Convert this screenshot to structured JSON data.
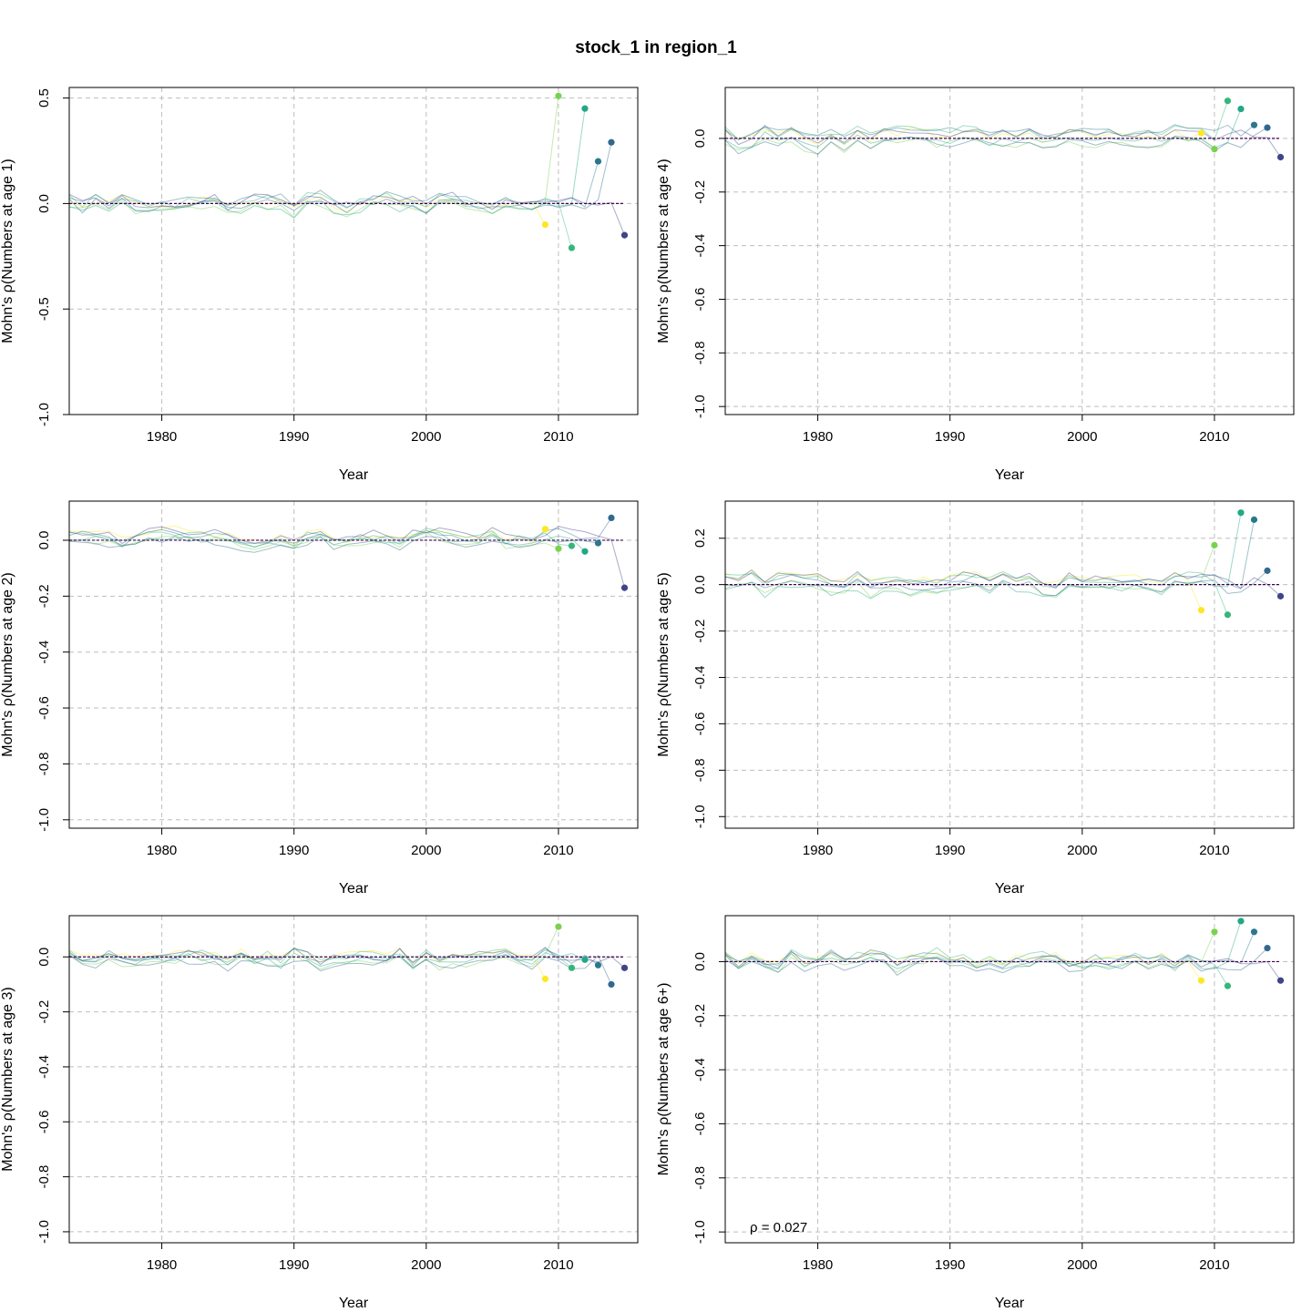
{
  "title": "stock_1 in region_1",
  "colors": {
    "peels": [
      "#FDE725",
      "#7AD151",
      "#22A884",
      "#2A788E",
      "#414487",
      "#440154"
    ],
    "reference_line": "#000000",
    "grid": "#BEBEBE"
  },
  "chart_data": [
    {
      "type": "line",
      "title": "",
      "xlabel": "Year",
      "ylabel": "Mohn's ρ(Numbers at age 1)",
      "xlim": [
        1973,
        2016
      ],
      "ylim": [
        -1.0,
        0.55
      ],
      "x_ticks": [
        1980,
        1990,
        2000,
        2010
      ],
      "y_ticks": [
        -1.0,
        -0.5,
        0.0,
        0.5
      ],
      "grid": true,
      "terminal_points": [
        {
          "x": 2009,
          "y": -0.1
        },
        {
          "x": 2010,
          "y": 0.51
        },
        {
          "x": 2011,
          "y": -0.21
        },
        {
          "x": 2012,
          "y": 0.45
        },
        {
          "x": 2013,
          "y": 0.2
        },
        {
          "x": 2014,
          "y": 0.29
        },
        {
          "x": 2015,
          "y": -0.15
        }
      ],
      "annotation": ""
    },
    {
      "type": "line",
      "title": "",
      "xlabel": "Year",
      "ylabel": "Mohn's ρ(Numbers at age 4)",
      "xlim": [
        1973,
        2016
      ],
      "ylim": [
        -1.03,
        0.19
      ],
      "x_ticks": [
        1980,
        1990,
        2000,
        2010
      ],
      "y_ticks": [
        -1.0,
        -0.8,
        -0.6,
        -0.4,
        -0.2,
        0.0
      ],
      "grid": true,
      "terminal_points": [
        {
          "x": 2009,
          "y": 0.02
        },
        {
          "x": 2010,
          "y": -0.04
        },
        {
          "x": 2011,
          "y": 0.14
        },
        {
          "x": 2012,
          "y": 0.11
        },
        {
          "x": 2013,
          "y": 0.05
        },
        {
          "x": 2014,
          "y": 0.04
        },
        {
          "x": 2015,
          "y": -0.07
        }
      ],
      "annotation": ""
    },
    {
      "type": "line",
      "title": "",
      "xlabel": "Year",
      "ylabel": "Mohn's ρ(Numbers at age 2)",
      "xlim": [
        1973,
        2016
      ],
      "ylim": [
        -1.03,
        0.14
      ],
      "x_ticks": [
        1980,
        1990,
        2000,
        2010
      ],
      "y_ticks": [
        -1.0,
        -0.8,
        -0.6,
        -0.4,
        -0.2,
        0.0
      ],
      "grid": true,
      "terminal_points": [
        {
          "x": 2009,
          "y": 0.04
        },
        {
          "x": 2010,
          "y": -0.03
        },
        {
          "x": 2011,
          "y": -0.02
        },
        {
          "x": 2012,
          "y": -0.04
        },
        {
          "x": 2013,
          "y": -0.01
        },
        {
          "x": 2014,
          "y": 0.08
        },
        {
          "x": 2015,
          "y": -0.17
        }
      ],
      "annotation": ""
    },
    {
      "type": "line",
      "title": "",
      "xlabel": "Year",
      "ylabel": "Mohn's ρ(Numbers at age 5)",
      "xlim": [
        1973,
        2016
      ],
      "ylim": [
        -1.05,
        0.36
      ],
      "x_ticks": [
        1980,
        1990,
        2000,
        2010
      ],
      "y_ticks": [
        -1.0,
        -0.8,
        -0.6,
        -0.4,
        -0.2,
        0.0,
        0.2
      ],
      "grid": true,
      "terminal_points": [
        {
          "x": 2009,
          "y": -0.11
        },
        {
          "x": 2010,
          "y": 0.17
        },
        {
          "x": 2011,
          "y": -0.13
        },
        {
          "x": 2012,
          "y": 0.31
        },
        {
          "x": 2013,
          "y": 0.28
        },
        {
          "x": 2014,
          "y": 0.06
        },
        {
          "x": 2015,
          "y": -0.05
        }
      ],
      "annotation": ""
    },
    {
      "type": "line",
      "title": "",
      "xlabel": "Year",
      "ylabel": "Mohn's ρ(Numbers at age 3)",
      "xlim": [
        1973,
        2016
      ],
      "ylim": [
        -1.04,
        0.15
      ],
      "x_ticks": [
        1980,
        1990,
        2000,
        2010
      ],
      "y_ticks": [
        -1.0,
        -0.8,
        -0.6,
        -0.4,
        -0.2,
        0.0
      ],
      "grid": true,
      "terminal_points": [
        {
          "x": 2009,
          "y": -0.08
        },
        {
          "x": 2010,
          "y": 0.11
        },
        {
          "x": 2011,
          "y": -0.04
        },
        {
          "x": 2012,
          "y": -0.01
        },
        {
          "x": 2013,
          "y": -0.03
        },
        {
          "x": 2014,
          "y": -0.1
        },
        {
          "x": 2015,
          "y": -0.04
        }
      ],
      "annotation": ""
    },
    {
      "type": "line",
      "title": "",
      "xlabel": "Year",
      "ylabel": "Mohn's ρ(Numbers at age 6+)",
      "xlim": [
        1973,
        2016
      ],
      "ylim": [
        -1.04,
        0.17
      ],
      "x_ticks": [
        1980,
        1990,
        2000,
        2010
      ],
      "y_ticks": [
        -1.0,
        -0.8,
        -0.6,
        -0.4,
        -0.2,
        0.0
      ],
      "grid": true,
      "terminal_points": [
        {
          "x": 2009,
          "y": -0.07
        },
        {
          "x": 2010,
          "y": 0.11
        },
        {
          "x": 2011,
          "y": -0.09
        },
        {
          "x": 2012,
          "y": 0.15
        },
        {
          "x": 2013,
          "y": 0.11
        },
        {
          "x": 2014,
          "y": 0.05
        },
        {
          "x": 2015,
          "y": -0.07
        }
      ],
      "annotation": "ρ = 0.027"
    }
  ]
}
